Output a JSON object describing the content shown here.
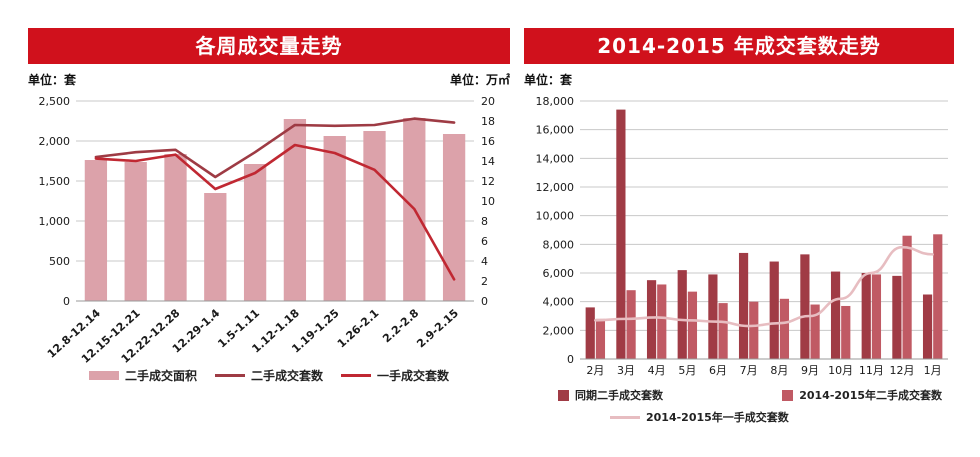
{
  "colors": {
    "banner": "#d0111c",
    "grid": "#c8c8c8",
    "axis_text": "#1a1a1a",
    "bar_pink": "#dca2aa",
    "line_dark": "#9e3b44",
    "line_red": "#c02832",
    "bar_dark": "#a03b45",
    "bar_medium": "#c05a64",
    "line_pink": "#e7bdc1"
  },
  "left_chart": {
    "title": "各周成交量走势",
    "unit_left": "单位：套",
    "unit_right": "单位：万㎡",
    "chart_data": {
      "type": "bar+line dual-axis",
      "categories": [
        "12.8-12.14",
        "12.15-12.21",
        "12.22-12.28",
        "12.29-1.4",
        "1.5-1.11",
        "1.12-1.18",
        "1.19-1.25",
        "1.26-2.1",
        "2.2-2.8",
        "2.9-2.15"
      ],
      "left_axis": {
        "min": 0,
        "max": 2500,
        "step": 500,
        "label": "单位：套"
      },
      "right_axis": {
        "min": 0,
        "max": 20,
        "step": 2,
        "label": "单位：万㎡"
      },
      "grid": true,
      "legend_position": "bottom",
      "series": [
        {
          "name": "二手成交面积",
          "type": "bar",
          "axis": "right",
          "color_key": "bar_pink",
          "values": [
            14.1,
            13.9,
            14.7,
            10.8,
            13.7,
            18.2,
            16.5,
            17.0,
            18.3,
            16.7
          ]
        },
        {
          "name": "二手成交套数",
          "type": "line",
          "axis": "left",
          "color_key": "line_dark",
          "values": [
            1800,
            1860,
            1890,
            1550,
            1860,
            2200,
            2190,
            2200,
            2280,
            2230
          ]
        },
        {
          "name": "一手成交套数",
          "type": "line",
          "axis": "left",
          "color_key": "line_red",
          "values": [
            1780,
            1750,
            1830,
            1400,
            1600,
            1950,
            1850,
            1640,
            1150,
            270
          ]
        }
      ]
    }
  },
  "right_chart": {
    "title": "2014-2015 年成交套数走势",
    "unit": "单位：套",
    "chart_data": {
      "type": "grouped-bar+line",
      "categories": [
        "2月",
        "3月",
        "4月",
        "5月",
        "6月",
        "7月",
        "8月",
        "9月",
        "10月",
        "11月",
        "12月",
        "1月"
      ],
      "y_axis": {
        "min": 0,
        "max": 18000,
        "step": 2000,
        "label": "单位：套"
      },
      "grid": true,
      "legend_position": "bottom",
      "series": [
        {
          "name": "同期二手成交套数",
          "type": "bar",
          "color_key": "bar_dark",
          "values": [
            3600,
            17400,
            5500,
            6200,
            5900,
            7400,
            6800,
            7300,
            6100,
            6000,
            5800,
            4500
          ]
        },
        {
          "name": "2014-2015年二手成交套数",
          "type": "bar",
          "color_key": "bar_medium",
          "values": [
            2800,
            4800,
            5200,
            4700,
            3900,
            4000,
            4200,
            3800,
            3700,
            5900,
            8600,
            8700
          ]
        },
        {
          "name": "2014-2015年一手成交套数",
          "type": "line",
          "color_key": "line_pink",
          "values": [
            2700,
            2800,
            2900,
            2700,
            2600,
            2300,
            2500,
            3000,
            4200,
            6000,
            7800,
            7300
          ]
        }
      ]
    }
  }
}
